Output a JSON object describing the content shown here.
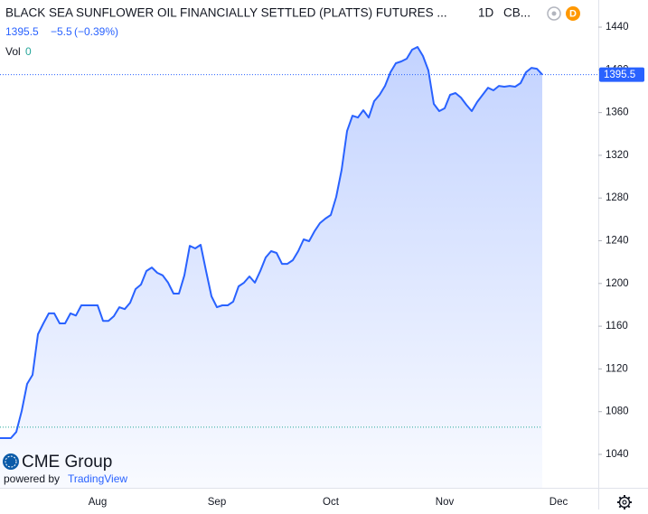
{
  "chart_data": {
    "type": "area",
    "title": "BLACK SEA SUNFLOWER OIL FINANCIALLY SETTLED (PLATTS) FUTURES ...",
    "interval": "1D",
    "exchange": "CB...",
    "badge": "D",
    "quote": {
      "last": 1395.5,
      "change": "−5.5",
      "change_pct": "(−0.39%)"
    },
    "volume": {
      "label": "Vol",
      "value": 0
    },
    "brand": {
      "logo": "CME Group",
      "powered_by": "powered by",
      "provider": "TradingView"
    },
    "color": "#2962ff",
    "base_line": 1065.5,
    "categories": [
      null,
      null,
      null,
      null,
      null,
      null,
      null,
      null,
      null,
      null,
      null,
      null,
      null,
      null,
      null,
      null,
      null,
      null,
      "Aug",
      null,
      null,
      null,
      null,
      null,
      null,
      null,
      null,
      null,
      null,
      null,
      null,
      null,
      null,
      null,
      null,
      null,
      null,
      null,
      null,
      null,
      "Sep",
      null,
      null,
      null,
      null,
      null,
      null,
      null,
      null,
      null,
      null,
      null,
      null,
      null,
      null,
      null,
      null,
      null,
      null,
      null,
      null,
      "Oct",
      null,
      null,
      null,
      null,
      null,
      null,
      null,
      null,
      null,
      null,
      null,
      null,
      null,
      null,
      null,
      null,
      null,
      null,
      null,
      null,
      "Nov",
      null,
      null,
      null,
      null,
      null,
      null,
      null,
      null,
      null,
      null,
      null,
      null,
      null,
      null,
      null,
      null,
      null,
      null,
      null,
      null,
      "Dec"
    ],
    "values": [
      1055.2,
      1055.2,
      1055.2,
      1061,
      1080.6,
      1106,
      1114.4,
      1152.5,
      1162.6,
      1172,
      1172,
      1162.6,
      1162.6,
      1172,
      1170,
      1179.5,
      1179.5,
      1179.5,
      1179.5,
      1165,
      1165,
      1169.4,
      1177.8,
      1176,
      1182,
      1194.8,
      1199,
      1211.7,
      1215,
      1210,
      1207.6,
      1200.8,
      1190.5,
      1190.5,
      1207.6,
      1235.3,
      1232.8,
      1236.2,
      1211.7,
      1188,
      1177.8,
      1179.5,
      1179.5,
      1183,
      1197.3,
      1200.8,
      1206.6,
      1200.8,
      1211.7,
      1224.4,
      1230.3,
      1228.6,
      1218.4,
      1218.4,
      1221.8,
      1230.3,
      1241.3,
      1239.6,
      1248.9,
      1256.5,
      1260.7,
      1264.1,
      1281,
      1306.4,
      1342.7,
      1357.1,
      1355.4,
      1362.2,
      1355.4,
      1370.7,
      1376.6,
      1385,
      1397.7,
      1406.2,
      1407.9,
      1410.4,
      1418.9,
      1421.4,
      1413,
      1399.4,
      1368.1,
      1361.4,
      1364,
      1376.6,
      1378.3,
      1374.1,
      1367.3,
      1361.4,
      1369.9,
      1376.6,
      1383.3,
      1380.8,
      1385,
      1384.2,
      1385,
      1384.2,
      1387.6,
      1397.7,
      1401.9,
      1401,
      1395.5,
      null,
      null,
      null
    ],
    "ylim": [
      1008.7,
      1465.4
    ],
    "yticks": [
      1040,
      1080,
      1120,
      1160,
      1200,
      1240,
      1280,
      1320,
      1360,
      1400,
      1440
    ],
    "grid": false
  }
}
